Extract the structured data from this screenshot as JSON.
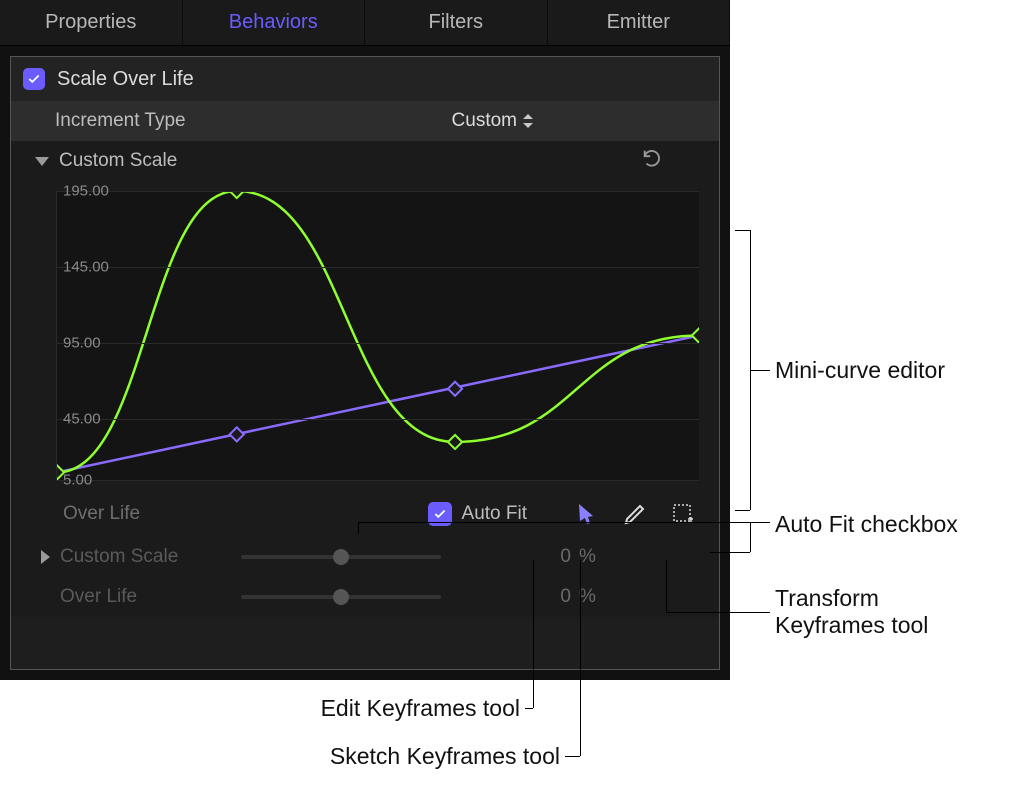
{
  "tabs": [
    "Properties",
    "Behaviors",
    "Filters",
    "Emitter"
  ],
  "active_tab_index": 1,
  "section": {
    "checked": true,
    "title": "Scale Over Life"
  },
  "increment_row": {
    "label": "Increment Type",
    "value": "Custom"
  },
  "custom_scale_row": {
    "label": "Custom Scale"
  },
  "chart": {
    "y_axis_label": "Custom Scale",
    "yticks": [
      195.0,
      145.0,
      95.0,
      5.0
    ],
    "ymin": 5,
    "ymax": 195,
    "xmin": 0,
    "xmax": 100,
    "yticks45": 45.0,
    "colors": {
      "curve1": "#8fff2e",
      "curve2": "#8a6bff",
      "grid": "#2a2a2a",
      "bg": "#141414"
    },
    "green_points": [
      {
        "x": 0,
        "y": 10
      },
      {
        "x": 28,
        "y": 195
      },
      {
        "x": 62,
        "y": 30
      },
      {
        "x": 100,
        "y": 100
      }
    ],
    "purple_points": [
      {
        "x": 0,
        "y": 10
      },
      {
        "x": 28,
        "y": 35
      },
      {
        "x": 62,
        "y": 65
      },
      {
        "x": 100,
        "y": 100
      }
    ]
  },
  "belowchart": {
    "label": "Over Life",
    "autofit_label": "Auto Fit",
    "autofit_checked": true
  },
  "params": [
    {
      "label": "Custom Scale",
      "value": "0",
      "unit": "%",
      "disclosure": true,
      "knob_pct": 50
    },
    {
      "label": "Over Life",
      "value": "0",
      "unit": "%",
      "disclosure": false,
      "knob_pct": 50
    }
  ],
  "callouts": {
    "mini_curve": "Mini-curve editor",
    "autofit": "Auto Fit checkbox",
    "transform": "Transform\nKeyframes tool",
    "edit": "Edit Keyframes tool",
    "sketch": "Sketch Keyframes tool"
  }
}
